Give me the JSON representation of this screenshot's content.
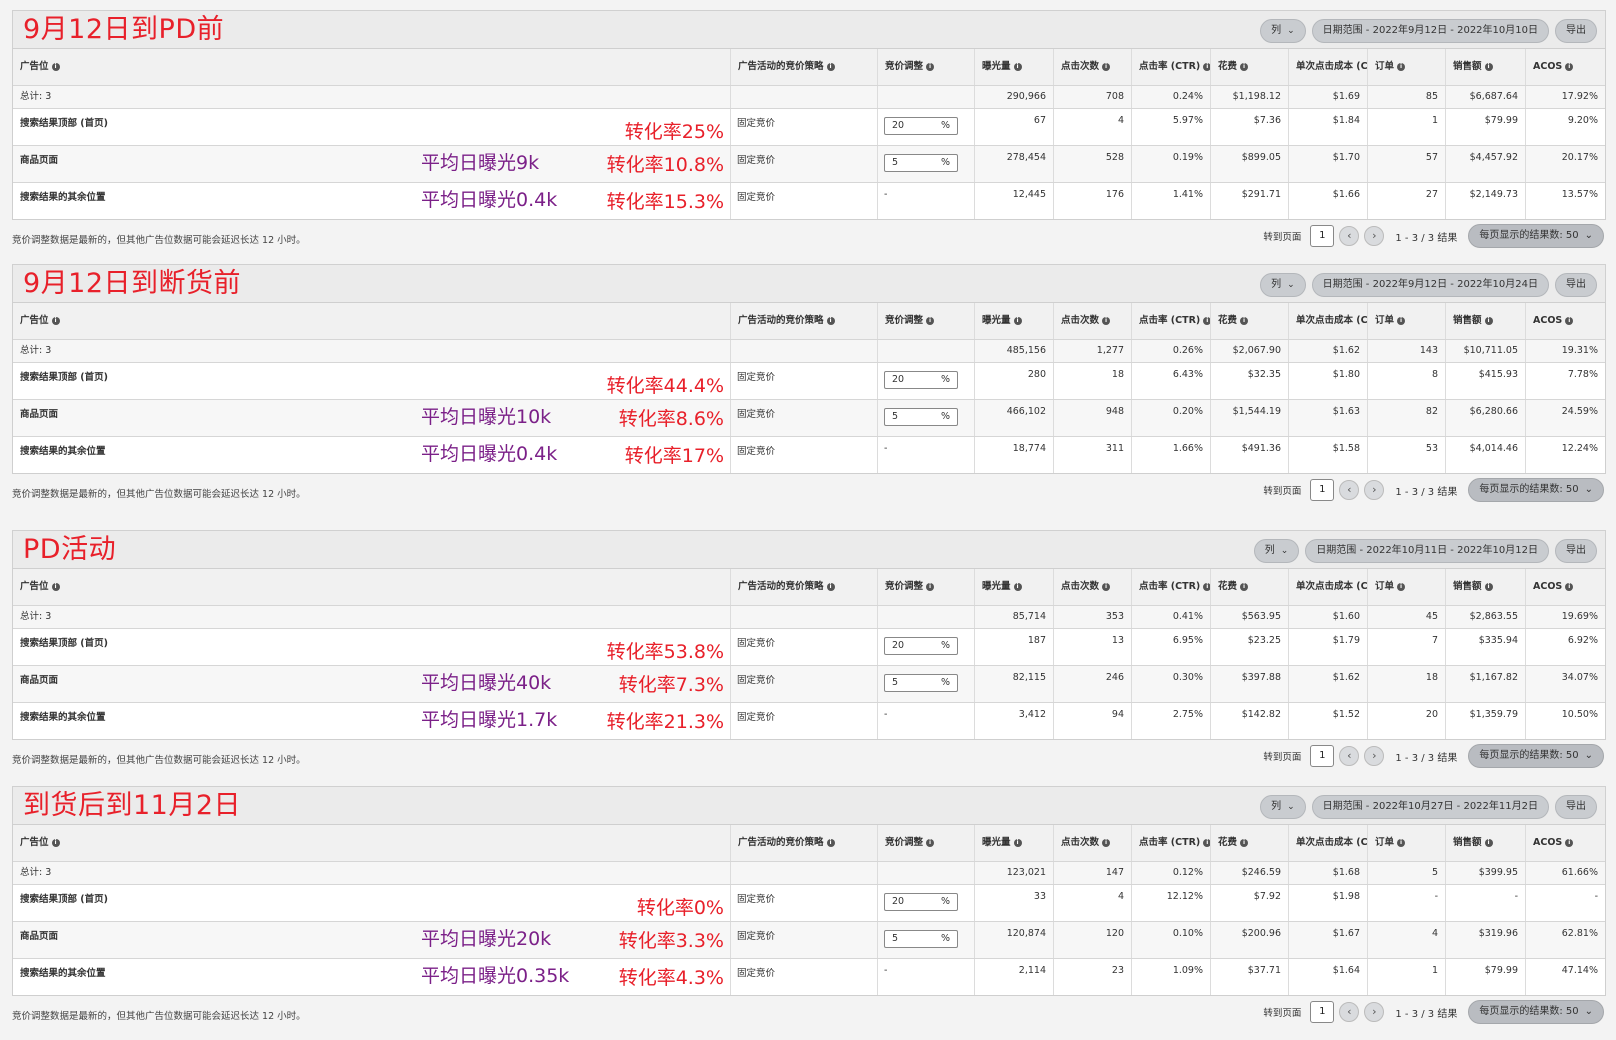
{
  "headers": {
    "placement": "广告位",
    "strategy": "广告活动的竞价策略",
    "adjustment": "竞价调整",
    "impressions": "曝光量",
    "clicks": "点击次数",
    "ctr": "点击率 (CTR)",
    "spend": "花费",
    "cpc": "单次点击成本 (CPC)",
    "orders": "订单",
    "sales": "销售额",
    "acos": "ACOS"
  },
  "ui": {
    "columns_button": "列",
    "export_button": "导出",
    "note": "竞价调整数据是最新的，但其他广告位数据可能会延迟长达 12 小时。",
    "goto_page": "转到页面",
    "page": "1",
    "range": "1 - 3 / 3 结果",
    "per_page": "每页显示的结果数:  50",
    "prev": "‹",
    "next": "›",
    "chevron": "⌄",
    "info": "i"
  },
  "panels": [
    {
      "title": "9月12日到PD前",
      "date_range": "日期范围 - 2022年9月12日 - 2022年10月10日",
      "total": {
        "label": "总计: 3",
        "impressions": "290,966",
        "clicks": "708",
        "ctr": "0.24%",
        "spend": "$1,198.12",
        "cpc": "$1.69",
        "orders": "85",
        "sales": "$6,687.64",
        "acos": "17.92%"
      },
      "rows": [
        {
          "placement": "搜索结果顶部 (首页)",
          "avg": "",
          "conv": "转化率25%",
          "strategy": "固定竞价",
          "adj": "20",
          "unit": "%",
          "impressions": "67",
          "clicks": "4",
          "ctr": "5.97%",
          "spend": "$7.36",
          "cpc": "$1.84",
          "orders": "1",
          "sales": "$79.99",
          "acos": "9.20%"
        },
        {
          "placement": "商品页面",
          "avg": "平均日曝光9k",
          "conv": "转化率10.8%",
          "strategy": "固定竞价",
          "adj": "5",
          "unit": "%",
          "impressions": "278,454",
          "clicks": "528",
          "ctr": "0.19%",
          "spend": "$899.05",
          "cpc": "$1.70",
          "orders": "57",
          "sales": "$4,457.92",
          "acos": "20.17%"
        },
        {
          "placement": "搜索结果的其余位置",
          "avg": "平均日曝光0.4k",
          "conv": "转化率15.3%",
          "strategy": "固定竞价",
          "adj": "-",
          "unit": "",
          "impressions": "12,445",
          "clicks": "176",
          "ctr": "1.41%",
          "spend": "$291.71",
          "cpc": "$1.66",
          "orders": "27",
          "sales": "$2,149.73",
          "acos": "13.57%"
        }
      ]
    },
    {
      "title": "9月12日到断货前",
      "date_range": "日期范围 - 2022年9月12日 - 2022年10月24日",
      "total": {
        "label": "总计: 3",
        "impressions": "485,156",
        "clicks": "1,277",
        "ctr": "0.26%",
        "spend": "$2,067.90",
        "cpc": "$1.62",
        "orders": "143",
        "sales": "$10,711.05",
        "acos": "19.31%"
      },
      "rows": [
        {
          "placement": "搜索结果顶部 (首页)",
          "avg": "",
          "conv": "转化率44.4%",
          "strategy": "固定竞价",
          "adj": "20",
          "unit": "%",
          "impressions": "280",
          "clicks": "18",
          "ctr": "6.43%",
          "spend": "$32.35",
          "cpc": "$1.80",
          "orders": "8",
          "sales": "$415.93",
          "acos": "7.78%"
        },
        {
          "placement": "商品页面",
          "avg": "平均日曝光10k",
          "conv": "转化率8.6%",
          "strategy": "固定竞价",
          "adj": "5",
          "unit": "%",
          "impressions": "466,102",
          "clicks": "948",
          "ctr": "0.20%",
          "spend": "$1,544.19",
          "cpc": "$1.63",
          "orders": "82",
          "sales": "$6,280.66",
          "acos": "24.59%"
        },
        {
          "placement": "搜索结果的其余位置",
          "avg": "平均日曝光0.4k",
          "conv": "转化率17%",
          "strategy": "固定竞价",
          "adj": "-",
          "unit": "",
          "impressions": "18,774",
          "clicks": "311",
          "ctr": "1.66%",
          "spend": "$491.36",
          "cpc": "$1.58",
          "orders": "53",
          "sales": "$4,014.46",
          "acos": "12.24%"
        }
      ]
    },
    {
      "title": "PD活动",
      "date_range": "日期范围 - 2022年10月11日 - 2022年10月12日",
      "total": {
        "label": "总计: 3",
        "impressions": "85,714",
        "clicks": "353",
        "ctr": "0.41%",
        "spend": "$563.95",
        "cpc": "$1.60",
        "orders": "45",
        "sales": "$2,863.55",
        "acos": "19.69%"
      },
      "rows": [
        {
          "placement": "搜索结果顶部 (首页)",
          "avg": "",
          "conv": "转化率53.8%",
          "strategy": "固定竞价",
          "adj": "20",
          "unit": "%",
          "impressions": "187",
          "clicks": "13",
          "ctr": "6.95%",
          "spend": "$23.25",
          "cpc": "$1.79",
          "orders": "7",
          "sales": "$335.94",
          "acos": "6.92%"
        },
        {
          "placement": "商品页面",
          "avg": "平均日曝光40k",
          "conv": "转化率7.3%",
          "strategy": "固定竞价",
          "adj": "5",
          "unit": "%",
          "impressions": "82,115",
          "clicks": "246",
          "ctr": "0.30%",
          "spend": "$397.88",
          "cpc": "$1.62",
          "orders": "18",
          "sales": "$1,167.82",
          "acos": "34.07%"
        },
        {
          "placement": "搜索结果的其余位置",
          "avg": "平均日曝光1.7k",
          "conv": "转化率21.3%",
          "strategy": "固定竞价",
          "adj": "-",
          "unit": "",
          "impressions": "3,412",
          "clicks": "94",
          "ctr": "2.75%",
          "spend": "$142.82",
          "cpc": "$1.52",
          "orders": "20",
          "sales": "$1,359.79",
          "acos": "10.50%"
        }
      ]
    },
    {
      "title": "到货后到11月2日",
      "date_range": "日期范围 - 2022年10月27日 - 2022年11月2日",
      "total": {
        "label": "总计: 3",
        "impressions": "123,021",
        "clicks": "147",
        "ctr": "0.12%",
        "spend": "$246.59",
        "cpc": "$1.68",
        "orders": "5",
        "sales": "$399.95",
        "acos": "61.66%"
      },
      "rows": [
        {
          "placement": "搜索结果顶部 (首页)",
          "avg": "",
          "conv": "转化率0%",
          "strategy": "固定竞价",
          "adj": "20",
          "unit": "%",
          "impressions": "33",
          "clicks": "4",
          "ctr": "12.12%",
          "spend": "$7.92",
          "cpc": "$1.98",
          "orders": "-",
          "sales": "-",
          "acos": "-"
        },
        {
          "placement": "商品页面",
          "avg": "平均日曝光20k",
          "conv": "转化率3.3%",
          "strategy": "固定竞价",
          "adj": "5",
          "unit": "%",
          "impressions": "120,874",
          "clicks": "120",
          "ctr": "0.10%",
          "spend": "$200.96",
          "cpc": "$1.67",
          "orders": "4",
          "sales": "$319.96",
          "acos": "62.81%"
        },
        {
          "placement": "搜索结果的其余位置",
          "avg": "平均日曝光0.35k",
          "conv": "转化率4.3%",
          "strategy": "固定竞价",
          "adj": "-",
          "unit": "",
          "impressions": "2,114",
          "clicks": "23",
          "ctr": "1.09%",
          "spend": "$37.71",
          "cpc": "$1.64",
          "orders": "1",
          "sales": "$79.99",
          "acos": "47.14%"
        }
      ]
    }
  ]
}
